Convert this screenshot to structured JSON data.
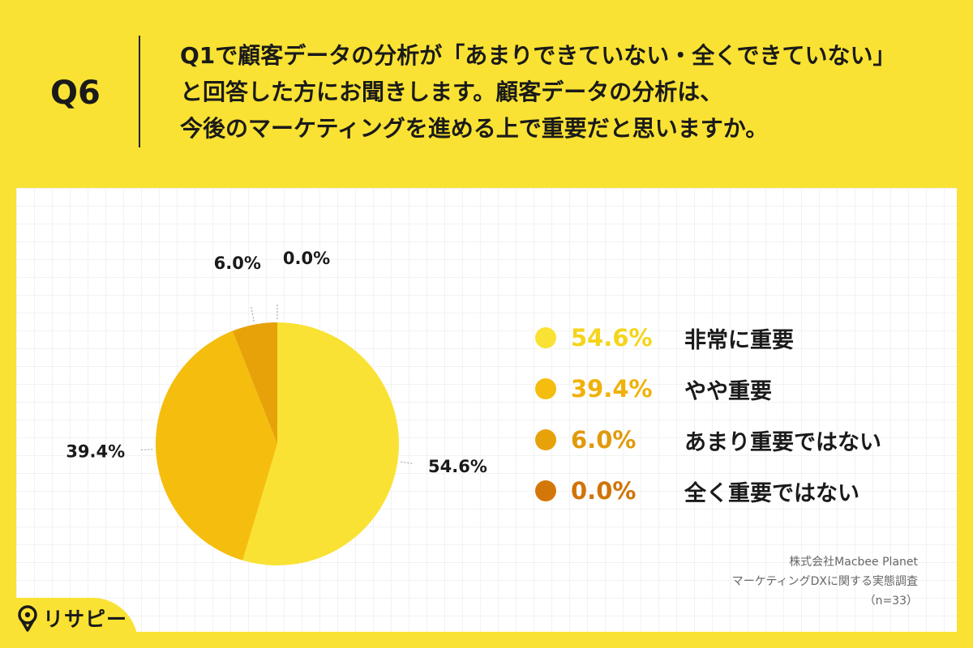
{
  "question": {
    "number": "Q6",
    "lines": [
      "Q1で顧客データの分析が「あまりできていない・全くできていない」",
      "と回答した方にお聞きします。顧客データの分析は、",
      "今後のマーケティングを進める上で重要だと思いますか。"
    ]
  },
  "chart_data": {
    "type": "pie",
    "categories": [
      "非常に重要",
      "やや重要",
      "あまり重要ではない",
      "全く重要ではない"
    ],
    "values": [
      54.6,
      39.4,
      6.0,
      0.0
    ],
    "value_labels": [
      "54.6%",
      "39.4%",
      "6.0%",
      "0.0%"
    ],
    "colors": [
      "#f9e233",
      "#f5bd0d",
      "#e7a20a",
      "#d47709"
    ],
    "legend_text_colors": [
      "#f5d41a",
      "#f0b10a",
      "#e09a0a",
      "#d07408"
    ],
    "legend_position": "right",
    "start": "12 o'clock, clockwise"
  },
  "footer": {
    "company": "株式会社Macbee Planet",
    "survey": "マーケティングDXに関する実態調査",
    "sample": "（n=33）"
  },
  "brand": {
    "logo_text": "リサピー"
  }
}
